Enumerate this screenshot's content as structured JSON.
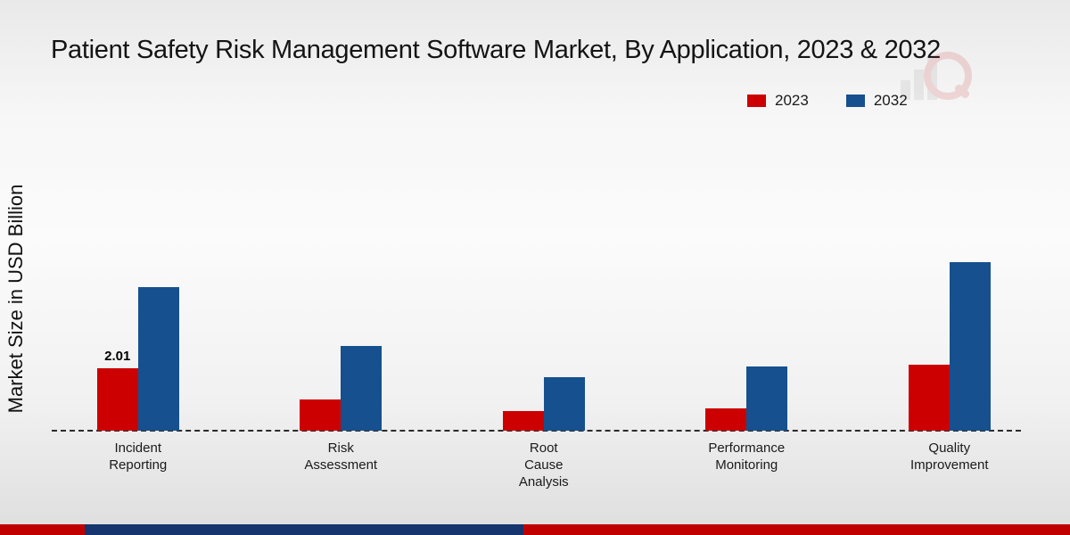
{
  "page": {
    "title": "Patient Safety Risk Management Software Market, By Application, 2023 & 2032"
  },
  "colors": {
    "series_2023": "#cc0001",
    "series_2032": "#16508e",
    "footer_red": "#c00000",
    "footer_navy": "#16356e",
    "baseline": "#2b2b2b"
  },
  "chart_data": {
    "type": "bar",
    "title": "Patient Safety Risk Management Software Market, By Application, 2023 & 2032",
    "xlabel": "",
    "ylabel": "Market Size in USD Billion",
    "ylim": [
      0,
      6
    ],
    "grid": false,
    "legend_position": "top-right",
    "categories": [
      "Incident Reporting",
      "Risk Assessment",
      "Root Cause Analysis",
      "Performance Monitoring",
      "Quality Improvement"
    ],
    "category_label_lines": [
      "Incident\nReporting",
      "Risk\nAssessment",
      "Root\nCause\nAnalysis",
      "Performance\nMonitoring",
      "Quality\nImprovement"
    ],
    "series": [
      {
        "name": "2023",
        "color": "#cc0001",
        "values": [
          2.01,
          1.0,
          0.63,
          0.72,
          2.1
        ]
      },
      {
        "name": "2032",
        "color": "#16508e",
        "values": [
          4.6,
          2.7,
          1.7,
          2.05,
          5.4
        ]
      }
    ],
    "annotations": [
      {
        "category_index": 0,
        "series_index": 0,
        "text": "2.01"
      }
    ]
  }
}
